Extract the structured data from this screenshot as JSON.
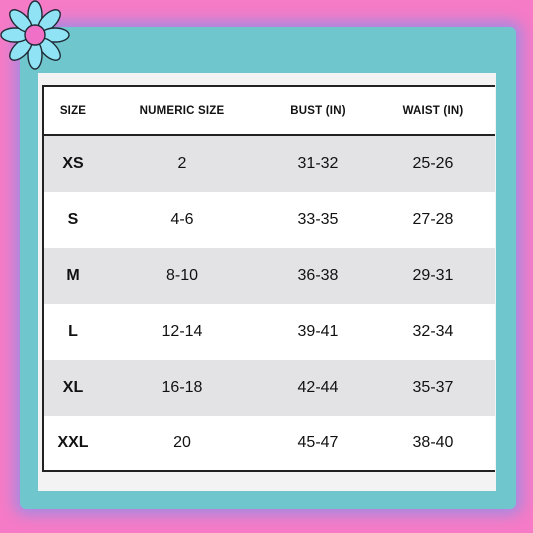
{
  "table": {
    "headers": [
      "SIZE",
      "NUMERIC SIZE",
      "BUST (IN)",
      "WAIST (IN)"
    ],
    "rows": [
      {
        "size": "XS",
        "numeric": "2",
        "bust": "31-32",
        "waist": "25-26"
      },
      {
        "size": "S",
        "numeric": "4-6",
        "bust": "33-35",
        "waist": "27-28"
      },
      {
        "size": "M",
        "numeric": "8-10",
        "bust": "36-38",
        "waist": "29-31"
      },
      {
        "size": "L",
        "numeric": "12-14",
        "bust": "39-41",
        "waist": "32-34"
      },
      {
        "size": "XL",
        "numeric": "16-18",
        "bust": "42-44",
        "waist": "35-37"
      },
      {
        "size": "XXL",
        "numeric": "20",
        "bust": "45-47",
        "waist": "38-40"
      }
    ]
  },
  "colors": {
    "background_pink": "#f67bc6",
    "frame_teal": "#6fc7cd",
    "row_shade": "#e3e3e6",
    "flower_petals": "#8fe3f4",
    "flower_center": "#f070c8"
  },
  "decorations": {
    "corner_icon": "flower-icon"
  }
}
